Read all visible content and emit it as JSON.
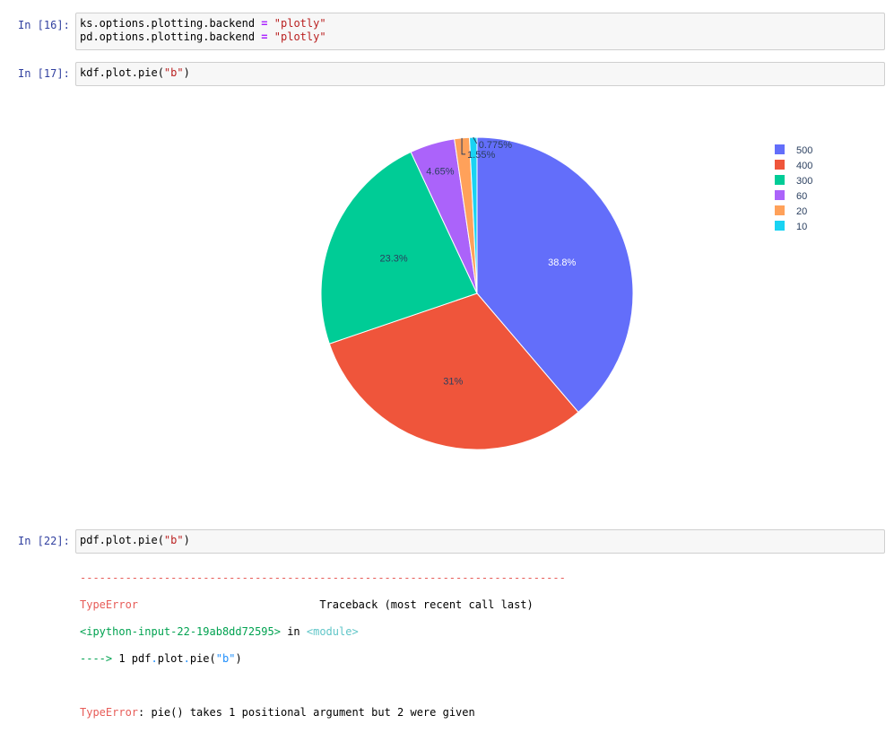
{
  "cells": [
    {
      "prompt": "In [16]:",
      "lines": [
        {
          "pre": "ks.options.plotting.backend ",
          "op": "=",
          "str": "\"plotly\""
        },
        {
          "pre": "pd.options.plotting.backend ",
          "op": "=",
          "str": "\"plotly\""
        }
      ]
    },
    {
      "prompt": "In [17]:",
      "code_pre": "kdf.plot.pie(",
      "code_str": "\"b\"",
      "code_post": ")"
    },
    {
      "prompt": "In [22]:",
      "code_pre": "pdf.plot.pie(",
      "code_str": "\"b\"",
      "code_post": ")"
    }
  ],
  "error": {
    "rule": "---------------------------------------------------------------------------",
    "type": "TypeError",
    "traceback_label": "Traceback (most recent call last)",
    "location": "<ipython-input-22-19ab8dd72595>",
    "in_word": " in ",
    "module": "<module>",
    "arrow_line_pre": "----> 1 pdf.plot.pie(",
    "arrow_line_str": "\"b\"",
    "arrow_line_post": ")",
    "message": ": pie() takes 1 positional argument but 2 were given"
  },
  "chart_data": {
    "type": "pie",
    "slices": [
      {
        "label": "500",
        "value": 500,
        "percent_label": "38.8%",
        "color": "#636efa"
      },
      {
        "label": "400",
        "value": 400,
        "percent_label": "31%",
        "color": "#ef553b"
      },
      {
        "label": "300",
        "value": 300,
        "percent_label": "23.3%",
        "color": "#00cc96"
      },
      {
        "label": "60",
        "value": 60,
        "percent_label": "4.65%",
        "color": "#ab63fa"
      },
      {
        "label": "20",
        "value": 20,
        "percent_label": "1.55%",
        "color": "#ffa15a"
      },
      {
        "label": "10",
        "value": 10,
        "percent_label": "0.775%",
        "color": "#19d3f3"
      }
    ],
    "legend_position": "top-right"
  }
}
